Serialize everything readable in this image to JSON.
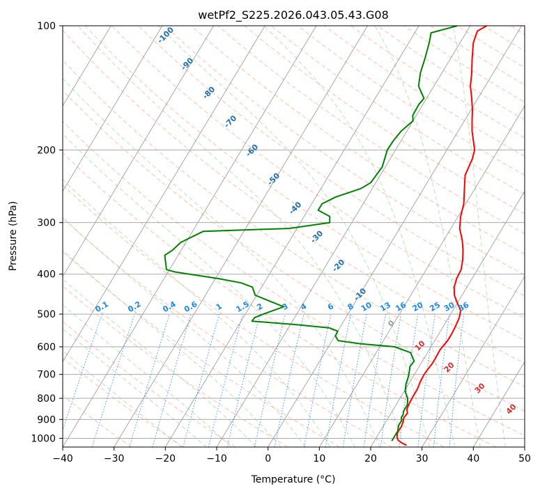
{
  "chart_data": {
    "type": "line",
    "title": "wetPf2_S225.2026.043.05.43.G08",
    "xlabel": "Temperature (°C)",
    "ylabel": "Pressure (hPa)",
    "xlim": [
      -40,
      50
    ],
    "ylim": [
      1050,
      100
    ],
    "y_scale": "log",
    "x_ticks": [
      -40,
      -30,
      -20,
      -10,
      0,
      10,
      20,
      30,
      40,
      50
    ],
    "y_ticks": [
      100,
      200,
      300,
      400,
      500,
      600,
      700,
      800,
      900,
      1000
    ],
    "grid": true,
    "series": [
      {
        "role": "temperature",
        "color": "#ff0000",
        "points": [
          [
            26.8,
            1040
          ],
          [
            25.5,
            1025
          ],
          [
            24.5,
            1010
          ],
          [
            24.0,
            995
          ],
          [
            23.6,
            975
          ],
          [
            23.5,
            955
          ],
          [
            23.6,
            940
          ],
          [
            23.4,
            915
          ],
          [
            23.0,
            890
          ],
          [
            23.2,
            870
          ],
          [
            22.6,
            850
          ],
          [
            22.4,
            820
          ],
          [
            22.3,
            790
          ],
          [
            22.3,
            760
          ],
          [
            22.0,
            730
          ],
          [
            21.9,
            700
          ],
          [
            22.0,
            680
          ],
          [
            22.2,
            660
          ],
          [
            22.2,
            640
          ],
          [
            22.1,
            610
          ],
          [
            22.5,
            580
          ],
          [
            22.5,
            560
          ],
          [
            22.4,
            540
          ],
          [
            22.1,
            510
          ],
          [
            21.5,
            490
          ],
          [
            20.0,
            470
          ],
          [
            18.5,
            450
          ],
          [
            17.5,
            430
          ],
          [
            17.0,
            410
          ],
          [
            16.8,
            390
          ],
          [
            16.0,
            370
          ],
          [
            14.9,
            350
          ],
          [
            13.5,
            330
          ],
          [
            11.7,
            310
          ],
          [
            10.5,
            290
          ],
          [
            9.6,
            270
          ],
          [
            8.1,
            250
          ],
          [
            6.5,
            230
          ],
          [
            6.0,
            210
          ],
          [
            5.4,
            200
          ],
          [
            4.1,
            190
          ],
          [
            2.7,
            180
          ],
          [
            1.5,
            170
          ],
          [
            0.3,
            160
          ],
          [
            -1.2,
            150
          ],
          [
            -2.9,
            140
          ],
          [
            -4.2,
            130
          ],
          [
            -5.8,
            120
          ],
          [
            -7.4,
            110
          ],
          [
            -8.0,
            103
          ],
          [
            -6.8,
            100
          ]
        ]
      },
      {
        "role": "dewpoint",
        "color": "#008000",
        "points": [
          [
            23.4,
            1015
          ],
          [
            23.4,
            1000
          ],
          [
            23.4,
            960
          ],
          [
            22.9,
            930
          ],
          [
            22.9,
            905
          ],
          [
            22.5,
            890
          ],
          [
            22.5,
            875
          ],
          [
            22.2,
            860
          ],
          [
            22.2,
            830
          ],
          [
            21.5,
            800
          ],
          [
            20.2,
            770
          ],
          [
            19.5,
            740
          ],
          [
            19.1,
            710
          ],
          [
            18.7,
            690
          ],
          [
            18.2,
            670
          ],
          [
            18.4,
            650
          ],
          [
            16.7,
            620
          ],
          [
            12.9,
            600
          ],
          [
            6.0,
            590
          ],
          [
            1.2,
            580
          ],
          [
            0.1,
            565
          ],
          [
            0.0,
            550
          ],
          [
            -2.0,
            540
          ],
          [
            -9.0,
            530
          ],
          [
            -17.9,
            520
          ],
          [
            -17.8,
            510
          ],
          [
            -16.5,
            500
          ],
          [
            -13.4,
            480
          ],
          [
            -16.8,
            465
          ],
          [
            -20.3,
            450
          ],
          [
            -21.8,
            430
          ],
          [
            -24.5,
            420
          ],
          [
            -29.5,
            410
          ],
          [
            -38.7,
            395
          ],
          [
            -40.6,
            390
          ],
          [
            -42.6,
            360
          ],
          [
            -41.7,
            350
          ],
          [
            -41.0,
            335
          ],
          [
            -37.9,
            315
          ],
          [
            -21.6,
            310
          ],
          [
            -14.3,
            300
          ],
          [
            -15.0,
            290
          ],
          [
            -18.0,
            280
          ],
          [
            -18.0,
            270
          ],
          [
            -16.1,
            260
          ],
          [
            -12.2,
            248
          ],
          [
            -11.0,
            240
          ],
          [
            -10.6,
            220
          ],
          [
            -11.6,
            200
          ],
          [
            -11.5,
            190
          ],
          [
            -11.1,
            180
          ],
          [
            -10.0,
            170
          ],
          [
            -10.7,
            165
          ],
          [
            -10.8,
            155
          ],
          [
            -10.5,
            150
          ],
          [
            -13.0,
            140
          ],
          [
            -14.2,
            130
          ],
          [
            -15.0,
            120
          ],
          [
            -16.0,
            110
          ],
          [
            -16.8,
            104
          ],
          [
            -12.5,
            100
          ]
        ]
      }
    ],
    "dry_adiabat_labels": [
      "-100",
      "-90",
      "-80",
      "-70",
      "-60",
      "-50",
      "-40",
      "-30",
      "-20",
      "-10"
    ],
    "mixing_ratio_labels": [
      "0.1",
      "0.2",
      "0.4",
      "0.6",
      "1",
      "1.5",
      "2",
      "3",
      "4",
      "6",
      "8",
      "10",
      "13",
      "16",
      "20",
      "25",
      "30",
      "36"
    ],
    "moist_adiabat_labels": [
      "0",
      "10",
      "20",
      "30",
      "40"
    ],
    "colors": {
      "dry_adiabat": "#ff8a65",
      "moist_adiabat": "#66bb6a",
      "mixing_ratio": "#1e88e5",
      "isotherm": "#888888",
      "isobar": "#aaaaaa",
      "dry_label": "#1f6fb0",
      "mixing_label": "#1e88e5",
      "moist_label": "#d32f2f",
      "zero_label": "#999999"
    }
  }
}
